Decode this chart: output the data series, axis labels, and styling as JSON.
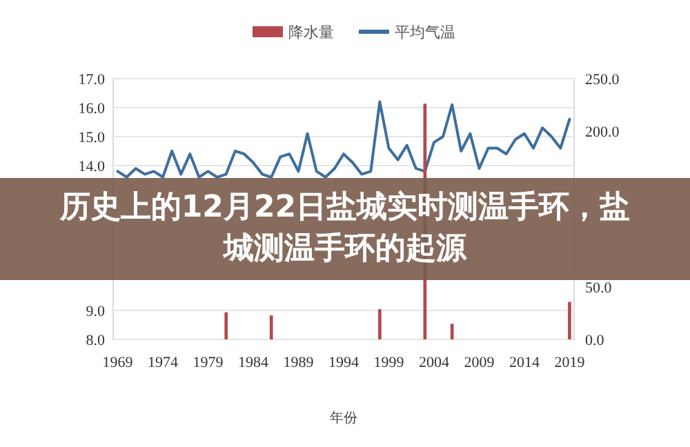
{
  "chart_data": {
    "type": "bar",
    "title": "历史上的12月22日盐城实时测温手环，盐城测温手环的起源",
    "xlabel": "年份",
    "x": [
      1969,
      1970,
      1971,
      1972,
      1973,
      1974,
      1975,
      1976,
      1977,
      1978,
      1979,
      1980,
      1981,
      1982,
      1983,
      1984,
      1985,
      1986,
      1987,
      1988,
      1989,
      1990,
      1991,
      1992,
      1993,
      1994,
      1995,
      1996,
      1997,
      1998,
      1999,
      2000,
      2001,
      2002,
      2003,
      2004,
      2005,
      2006,
      2007,
      2008,
      2009,
      2010,
      2011,
      2012,
      2013,
      2014,
      2015,
      2016,
      2017,
      2018,
      2019
    ],
    "xlim": [
      1968.5,
      2019.5
    ],
    "xticks": [
      1969,
      1974,
      1979,
      1984,
      1989,
      1994,
      1999,
      2004,
      2009,
      2014,
      2019
    ],
    "ylim": [
      8,
      17
    ],
    "yticks": [
      {
        "value": 8,
        "label": "8.0"
      },
      {
        "value": 9,
        "label": "9.0"
      },
      {
        "value": 14,
        "label": "14.0"
      },
      {
        "value": 15,
        "label": "15.0"
      },
      {
        "value": 16,
        "label": "16.0"
      },
      {
        "value": 17,
        "label": "17.0"
      }
    ],
    "y2lim": [
      0,
      250
    ],
    "y2ticks": [
      {
        "value": 0,
        "label": "0.0"
      },
      {
        "value": 50,
        "label": "50.0"
      },
      {
        "value": 200,
        "label": "200.0"
      },
      {
        "value": 250,
        "label": "250.0"
      }
    ],
    "grid": "y",
    "legend": "top",
    "series": [
      {
        "name": "降水量",
        "axis": "y2",
        "color": "#b5484d",
        "values": [
          null,
          null,
          null,
          null,
          null,
          null,
          null,
          null,
          null,
          null,
          null,
          null,
          26,
          null,
          null,
          null,
          null,
          23,
          null,
          null,
          null,
          null,
          null,
          null,
          null,
          null,
          null,
          null,
          null,
          29,
          null,
          null,
          null,
          null,
          226,
          null,
          null,
          15,
          null,
          null,
          null,
          null,
          null,
          null,
          null,
          null,
          null,
          null,
          null,
          null,
          36
        ]
      },
      {
        "name": "平均气温",
        "type": "line",
        "axis": "y",
        "color": "#3d6f9e",
        "values": [
          13.8,
          13.6,
          13.9,
          13.7,
          13.8,
          13.6,
          14.5,
          13.7,
          14.4,
          13.6,
          13.8,
          13.6,
          13.7,
          14.5,
          14.4,
          14.1,
          13.7,
          13.6,
          14.3,
          14.4,
          13.8,
          15.1,
          13.8,
          13.6,
          13.9,
          14.4,
          14.1,
          13.7,
          13.8,
          16.2,
          14.6,
          14.2,
          14.7,
          13.9,
          13.8,
          14.8,
          15.0,
          16.1,
          14.5,
          15.1,
          13.9,
          14.6,
          14.6,
          14.4,
          14.9,
          15.1,
          14.6,
          15.3,
          15.0,
          14.6,
          15.6
        ]
      }
    ]
  }
}
